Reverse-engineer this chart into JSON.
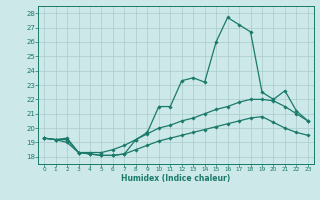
{
  "x": [
    0,
    1,
    2,
    3,
    4,
    5,
    6,
    7,
    8,
    9,
    10,
    11,
    12,
    13,
    14,
    15,
    16,
    17,
    18,
    19,
    20,
    21,
    22,
    23
  ],
  "line_peak": [
    19.3,
    19.2,
    19.0,
    18.3,
    18.2,
    18.1,
    18.1,
    18.2,
    19.2,
    19.7,
    21.5,
    21.5,
    23.3,
    23.5,
    23.2,
    26.0,
    27.7,
    27.2,
    26.7,
    22.5,
    22.0,
    22.6,
    21.2,
    20.5
  ],
  "line_upper": [
    19.3,
    19.2,
    19.3,
    18.3,
    18.3,
    18.3,
    18.5,
    18.8,
    19.2,
    19.6,
    20.0,
    20.2,
    20.5,
    20.7,
    21.0,
    21.3,
    21.5,
    21.8,
    22.0,
    22.0,
    21.9,
    21.5,
    21.0,
    20.5
  ],
  "line_lower": [
    19.3,
    19.2,
    19.2,
    18.3,
    18.2,
    18.1,
    18.1,
    18.2,
    18.5,
    18.8,
    19.1,
    19.3,
    19.5,
    19.7,
    19.9,
    20.1,
    20.3,
    20.5,
    20.7,
    20.8,
    20.4,
    20.0,
    19.7,
    19.5
  ],
  "line_color": "#1a7a6a",
  "bg_color": "#cce8e8",
  "grid_color": "#aacccc",
  "xlabel": "Humidex (Indice chaleur)",
  "ylim": [
    17.5,
    28.5
  ],
  "xlim": [
    -0.5,
    23.5
  ],
  "yticks": [
    18,
    19,
    20,
    21,
    22,
    23,
    24,
    25,
    26,
    27,
    28
  ],
  "xticks": [
    0,
    1,
    2,
    3,
    4,
    5,
    6,
    7,
    8,
    9,
    10,
    11,
    12,
    13,
    14,
    15,
    16,
    17,
    18,
    19,
    20,
    21,
    22,
    23
  ]
}
